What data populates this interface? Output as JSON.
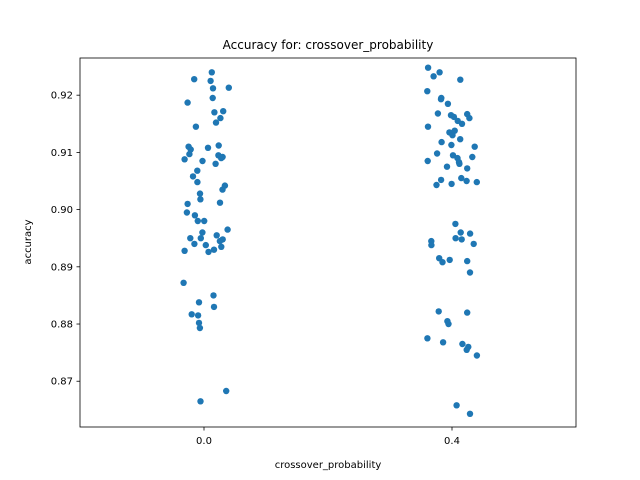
{
  "chart_data": {
    "type": "scatter",
    "title": "Accuracy for: crossover_probability",
    "xlabel": "crossover_probability",
    "ylabel": "accuracy",
    "categories": [
      "0.0",
      "0.4"
    ],
    "ylim": [
      0.862,
      0.9265
    ],
    "yticks": [
      "0.87",
      "0.88",
      "0.89",
      "0.90",
      "0.91",
      "0.92"
    ],
    "point_color": "#1f77b4",
    "grid": false,
    "series": [
      {
        "category": "0.0",
        "values": [
          0.924,
          0.9228,
          0.9225,
          0.9213,
          0.9212,
          0.9195,
          0.9187,
          0.9172,
          0.917,
          0.916,
          0.9152,
          0.9145,
          0.9112,
          0.911,
          0.9108,
          0.9105,
          0.9097,
          0.9095,
          0.9092,
          0.909,
          0.9088,
          0.9085,
          0.908,
          0.9068,
          0.9058,
          0.9048,
          0.9042,
          0.9035,
          0.9028,
          0.9018,
          0.9012,
          0.901,
          0.8995,
          0.899,
          0.898,
          0.898,
          0.8965,
          0.896,
          0.8955,
          0.895,
          0.895,
          0.8948,
          0.8945,
          0.894,
          0.8938,
          0.8935,
          0.893,
          0.8928,
          0.8926,
          0.8872,
          0.885,
          0.8838,
          0.883,
          0.8817,
          0.8815,
          0.8802,
          0.8793,
          0.8683,
          0.8665
        ]
      },
      {
        "category": "0.4",
        "values": [
          0.9248,
          0.924,
          0.9233,
          0.9227,
          0.9207,
          0.9195,
          0.9193,
          0.9185,
          0.9168,
          0.9167,
          0.9165,
          0.9162,
          0.916,
          0.9155,
          0.915,
          0.9145,
          0.9138,
          0.9135,
          0.913,
          0.9123,
          0.9118,
          0.9113,
          0.911,
          0.9098,
          0.9095,
          0.9092,
          0.909,
          0.9085,
          0.9083,
          0.908,
          0.9075,
          0.9072,
          0.9055,
          0.9052,
          0.905,
          0.9048,
          0.9045,
          0.9043,
          0.8975,
          0.896,
          0.8958,
          0.895,
          0.8948,
          0.8945,
          0.894,
          0.8938,
          0.8915,
          0.8912,
          0.891,
          0.8908,
          0.889,
          0.8822,
          0.882,
          0.8805,
          0.88,
          0.8775,
          0.8768,
          0.8765,
          0.876,
          0.8755,
          0.8745,
          0.8658,
          0.8643
        ]
      }
    ]
  }
}
